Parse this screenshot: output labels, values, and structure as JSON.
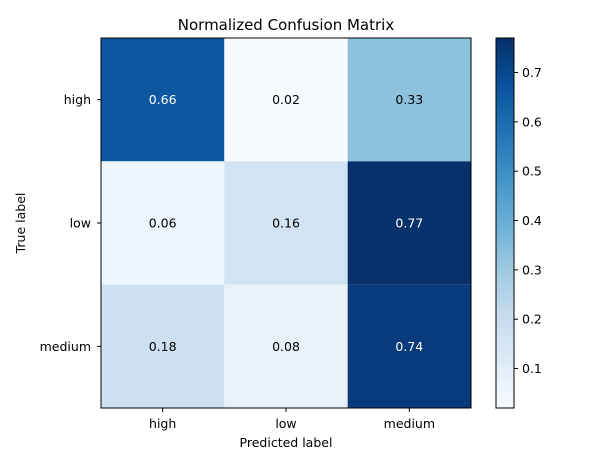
{
  "chart_data": {
    "type": "heatmap",
    "title": "Normalized Confusion Matrix",
    "xlabel": "Predicted label",
    "ylabel": "True label",
    "x_categories": [
      "high",
      "low",
      "medium"
    ],
    "y_categories": [
      "high",
      "low",
      "medium"
    ],
    "values": [
      [
        0.66,
        0.02,
        0.33
      ],
      [
        0.06,
        0.16,
        0.77
      ],
      [
        0.18,
        0.08,
        0.74
      ]
    ],
    "colormap": "Blues",
    "color_range": [
      0.02,
      0.77
    ],
    "colorbar_ticks": [
      "0.1",
      "0.2",
      "0.3",
      "0.4",
      "0.5",
      "0.6",
      "0.7"
    ],
    "colorbar_tick_values": [
      0.1,
      0.2,
      0.3,
      0.4,
      0.5,
      0.6,
      0.7
    ]
  }
}
